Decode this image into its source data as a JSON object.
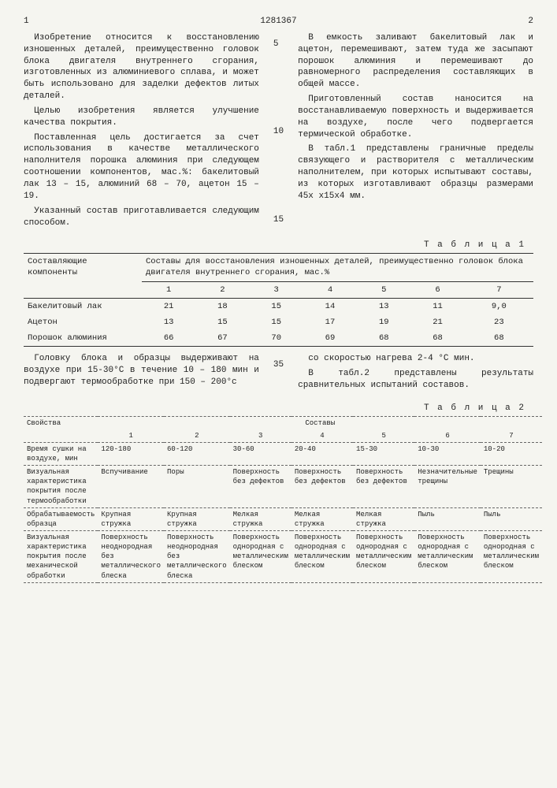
{
  "doc_number": "1281367",
  "page_left": "1",
  "page_right": "2",
  "left_paragraphs": [
    "Изобретение относится к восстановлению изношенных деталей, преимущественно головок блока двигателя внутреннего сгорания, изготовленных из алюминиевого сплава, и может быть использовано для заделки дефектов литых деталей.",
    "Целью изобретения является улучшение качества покрытия.",
    "Поставленная цель достигается за счет использования в качестве металлического наполнителя порошка алюминия при следующем соотношении компонентов, мас.%: бакелитовый лак 13 – 15, алюминий 68 – 70, ацетон 15 – 19.",
    "Указанный состав приготавливается следующим способом."
  ],
  "right_paragraphs": [
    "В емкость заливают бакелитовый лак и ацетон, перемешивают, затем туда же засыпают порошок алюминия и перемешивают до равномерного распределения составляющих в общей массе.",
    "Приготовленный состав наносится на восстанавливаемую поверхность и выдерживается на воздухе, после чего подвергается термической обработке.",
    "В табл.1 представлены граничные пределы связующего и растворителя с металлическим наполнителем, при которых испытывают составы, из которых изготавливают образцы размерами 45х х15х4 мм."
  ],
  "line_markers": [
    "5",
    "10",
    "15"
  ],
  "table1": {
    "label": "Т а б л и ц а  1",
    "col_header_left": "Составляющие компоненты",
    "col_header_right": "Составы для восстановления изношенных деталей, преимущественно головок блока двигателя внутреннего сгорания, мас.%",
    "nums": [
      "1",
      "2",
      "3",
      "4",
      "5",
      "6",
      "7"
    ],
    "rows": [
      {
        "label": "Бакелитовый лак",
        "vals": [
          "21",
          "18",
          "15",
          "14",
          "13",
          "11",
          "9,0"
        ]
      },
      {
        "label": "Ацетон",
        "vals": [
          "13",
          "15",
          "15",
          "17",
          "19",
          "21",
          "23"
        ]
      },
      {
        "label": "Порошок алюминия",
        "vals": [
          "66",
          "67",
          "70",
          "69",
          "68",
          "68",
          "68"
        ]
      }
    ]
  },
  "mid_left": "Головку блока и образцы выдерживают на воздухе при 15-30°С в течение 10 – 180 мин и подвергают термообработке при 150 – 200°с",
  "mid_marker": "35",
  "mid_right1": "со скоростью нагрева 2-4 °С мин.",
  "mid_right2": "В табл.2 представлены результаты сравнительных испытаний составов.",
  "table2": {
    "label": "Т а б л и ц а  2",
    "props_header": "Свойства",
    "compositions_header": "Составы",
    "nums": [
      "1",
      "2",
      "3",
      "4",
      "5",
      "6",
      "7"
    ],
    "rows": [
      {
        "label": "Время сушки на воздухе, мин",
        "vals": [
          "120-180",
          "60-120",
          "30-60",
          "20-40",
          "15-30",
          "10-30",
          "10-20"
        ]
      },
      {
        "label": "Визуальная характеристика покрытия после термообработки",
        "vals": [
          "Вспучивание",
          "Поры",
          "Поверхность без дефектов",
          "Поверхность без дефектов",
          "Поверхность без дефектов",
          "Незначительные трещины",
          "Трещины"
        ]
      },
      {
        "label": "Обрабатываемость образца",
        "vals": [
          "Крупная стружка",
          "Крупная стружка",
          "Мелкая стружка",
          "Мелкая стружка",
          "Мелкая стружка",
          "Пыль",
          "Пыль"
        ]
      },
      {
        "label": "Визуальная характеристика покрытия после механической обработки",
        "vals": [
          "Поверхность неоднородная без металлического блеска",
          "Поверхность неоднородная без металлического блеска",
          "Поверхность однородная с металлическим блеском",
          "Поверхность однородная с металлическим блеском",
          "Поверхность однородная с металлическим блеском",
          "Поверхность однородная с металлическим блеском",
          "Поверхность однородная с металлическим блеском"
        ]
      }
    ]
  }
}
